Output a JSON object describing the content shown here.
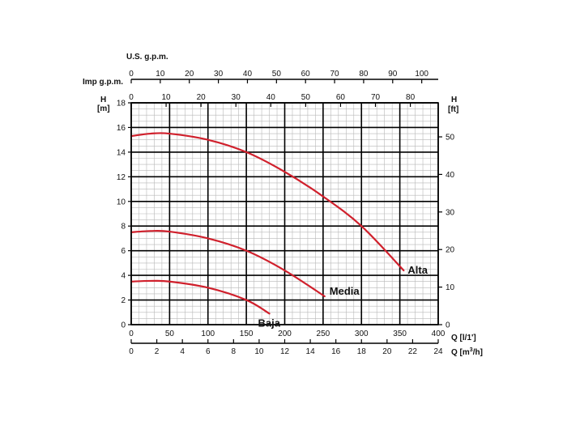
{
  "chart_data": {
    "type": "line",
    "title": "",
    "grid": true,
    "colors": {
      "curve": "#d0202c",
      "grid_major": "#000000",
      "grid_minor": "#b8b8b8",
      "axis": "#000000"
    },
    "axes": {
      "top_usgpm": {
        "label": "U.S. g.p.m.",
        "ticks": [
          0,
          10,
          20,
          30,
          40,
          50,
          60,
          70,
          80,
          90,
          100
        ],
        "range": [
          0,
          105.67
        ]
      },
      "top_impgpm": {
        "label": "Imp g.p.m.",
        "ticks": [
          0,
          10,
          20,
          30,
          40,
          50,
          60,
          70,
          80
        ],
        "range": [
          0,
          87.99
        ]
      },
      "left_m": {
        "label_line1": "H",
        "label_line2": "[m]",
        "ticks": [
          0,
          2,
          4,
          6,
          8,
          10,
          12,
          14,
          16,
          18
        ],
        "range": [
          0,
          18
        ]
      },
      "right_ft": {
        "label_line1": "H",
        "label_line2": "[ft]",
        "ticks": [
          0,
          10,
          20,
          30,
          40,
          50
        ],
        "range": [
          0,
          59.06
        ]
      },
      "bottom_lpm": {
        "label": "Q [l/1']",
        "ticks": [
          0,
          50,
          100,
          150,
          200,
          250,
          300,
          350,
          400
        ],
        "range": [
          0,
          400
        ]
      },
      "bottom_m3h": {
        "label": "Q [m",
        "label_sup": "3",
        "label_end": "/h]",
        "ticks": [
          0,
          2,
          4,
          6,
          8,
          10,
          12,
          14,
          16,
          18,
          20,
          22,
          24
        ],
        "range": [
          0,
          24
        ]
      }
    },
    "series": [
      {
        "name": "Alta",
        "x": [
          0,
          25,
          50,
          100,
          150,
          200,
          250,
          300,
          355
        ],
        "y": [
          15.3,
          15.5,
          15.5,
          15.0,
          14.0,
          12.4,
          10.4,
          8.0,
          4.4
        ]
      },
      {
        "name": "Media",
        "x": [
          0,
          25,
          50,
          100,
          150,
          200,
          252
        ],
        "y": [
          7.5,
          7.6,
          7.55,
          7.0,
          6.0,
          4.4,
          2.3
        ]
      },
      {
        "name": "Baja",
        "x": [
          0,
          25,
          50,
          100,
          150,
          180
        ],
        "y": [
          3.5,
          3.55,
          3.5,
          3.0,
          2.0,
          0.9
        ]
      }
    ]
  }
}
